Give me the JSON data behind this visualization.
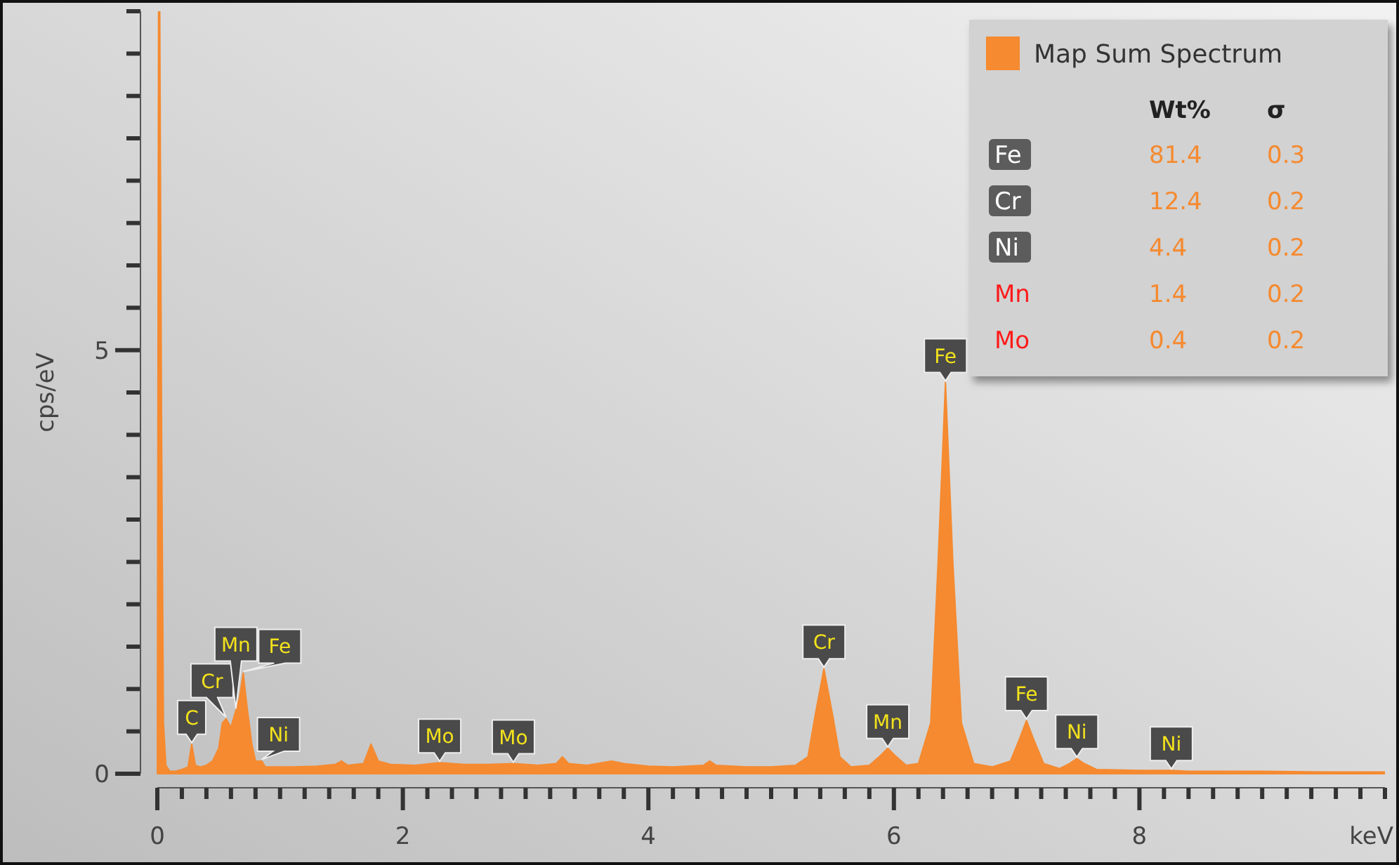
{
  "chart_data": [
    {
      "type": "area",
      "xlabel": "keV",
      "ylabel": "cps/eV",
      "legend": "top right",
      "xlim": [
        0,
        10
      ],
      "ylim": [
        0,
        9
      ],
      "xticks": [
        0,
        {
          "value": 0.2,
          "label": null
        },
        {
          "value": 0.4,
          "label": null
        },
        {
          "value": 0.6,
          "label": null
        },
        {
          "value": 0.8,
          "label": null
        },
        {
          "value": 1,
          "label": null
        },
        {
          "value": 1.2,
          "label": null
        },
        {
          "value": 1.4,
          "label": null
        },
        {
          "value": 1.6,
          "label": null
        },
        {
          "value": 1.8,
          "label": null
        },
        2,
        {
          "value": 2.2,
          "label": null
        },
        {
          "value": 2.4,
          "label": null
        },
        {
          "value": 2.6,
          "label": null
        },
        {
          "value": 2.8,
          "label": null
        },
        {
          "value": 3,
          "label": null
        },
        {
          "value": 3.2,
          "label": null
        },
        {
          "value": 3.4,
          "label": null
        },
        {
          "value": 3.6,
          "label": null
        },
        {
          "value": 3.8,
          "label": null
        },
        4,
        {
          "value": 4.2,
          "label": null
        },
        {
          "value": 4.4,
          "label": null
        },
        {
          "value": 4.6,
          "label": null
        },
        {
          "value": 4.8,
          "label": null
        },
        {
          "value": 5,
          "label": null
        },
        {
          "value": 5.2,
          "label": null
        },
        {
          "value": 5.4,
          "label": null
        },
        {
          "value": 5.6,
          "label": null
        },
        {
          "value": 5.8,
          "label": null
        },
        6,
        {
          "value": 6.2,
          "label": null
        },
        {
          "value": 6.4,
          "label": null
        },
        {
          "value": 6.6,
          "label": null
        },
        {
          "value": 6.8,
          "label": null
        },
        {
          "value": 7,
          "label": null
        },
        {
          "value": 7.2,
          "label": null
        },
        {
          "value": 7.4,
          "label": null
        },
        {
          "value": 7.6,
          "label": null
        },
        {
          "value": 7.8,
          "label": null
        },
        8,
        {
          "value": 8.2,
          "label": null
        },
        {
          "value": 8.4,
          "label": null
        },
        {
          "value": 8.6,
          "label": null
        },
        {
          "value": 8.8,
          "label": null
        },
        {
          "value": 9,
          "label": null
        },
        {
          "value": 9.2,
          "label": null
        },
        {
          "value": 9.4,
          "label": null
        },
        {
          "value": 9.6,
          "label": null
        },
        {
          "value": 9.8,
          "label": null
        },
        {
          "value": 10,
          "label": null
        }
      ],
      "yticks": [
        0,
        {
          "value": 0.5,
          "label": null
        },
        {
          "value": 1,
          "label": null
        },
        {
          "value": 1.5,
          "label": null
        },
        {
          "value": 2,
          "label": null
        },
        {
          "value": 2.5,
          "label": null
        },
        {
          "value": 3,
          "label": null
        },
        {
          "value": 3.5,
          "label": null
        },
        {
          "value": 4,
          "label": null
        },
        {
          "value": 4.5,
          "label": null
        },
        5,
        {
          "value": 5.5,
          "label": null
        },
        {
          "value": 6,
          "label": null
        },
        {
          "value": 6.5,
          "label": null
        },
        {
          "value": 7,
          "label": null
        },
        {
          "value": 7.5,
          "label": null
        },
        {
          "value": 8,
          "label": null
        },
        {
          "value": 8.5,
          "label": null
        },
        {
          "value": 9,
          "label": null
        }
      ],
      "x": [
        0,
        0.01,
        0.02,
        0.035,
        0.05,
        0.07,
        0.1,
        0.15,
        0.2,
        0.25,
        0.28,
        0.31,
        0.35,
        0.4,
        0.45,
        0.5,
        0.53,
        0.56,
        0.6,
        0.64,
        0.67,
        0.7,
        0.73,
        0.77,
        0.8,
        0.85,
        0.88,
        0.95,
        1.1,
        1.3,
        1.45,
        1.5,
        1.55,
        1.68,
        1.74,
        1.8,
        1.9,
        2.1,
        2.3,
        2.5,
        2.7,
        2.9,
        3.1,
        3.25,
        3.3,
        3.35,
        3.5,
        3.7,
        3.8,
        4.0,
        4.2,
        4.45,
        4.5,
        4.55,
        4.8,
        5.0,
        5.2,
        5.3,
        5.36,
        5.43,
        5.5,
        5.56,
        5.65,
        5.8,
        5.88,
        5.95,
        6.02,
        6.1,
        6.2,
        6.3,
        6.36,
        6.42,
        6.48,
        6.55,
        6.65,
        6.8,
        6.95,
        7.02,
        7.08,
        7.14,
        7.22,
        7.35,
        7.43,
        7.49,
        7.55,
        7.65,
        8.0,
        8.26,
        8.4,
        9.0,
        9.5,
        10
      ],
      "series": [
        {
          "name": "Map Sum Spectrum",
          "color": "#f58a30",
          "values": [
            0,
            9,
            9,
            4,
            0.6,
            0.1,
            0.03,
            0.03,
            0.05,
            0.08,
            0.35,
            0.1,
            0.08,
            0.1,
            0.15,
            0.3,
            0.6,
            0.65,
            0.55,
            0.75,
            0.9,
            1.19,
            0.8,
            0.35,
            0.15,
            0.15,
            0.08,
            0.08,
            0.08,
            0.09,
            0.11,
            0.15,
            0.1,
            0.12,
            0.35,
            0.15,
            0.11,
            0.1,
            0.13,
            0.11,
            0.11,
            0.12,
            0.1,
            0.12,
            0.2,
            0.12,
            0.1,
            0.15,
            0.12,
            0.09,
            0.08,
            0.1,
            0.15,
            0.1,
            0.08,
            0.08,
            0.1,
            0.2,
            0.7,
            1.24,
            0.7,
            0.2,
            0.08,
            0.1,
            0.2,
            0.3,
            0.2,
            0.1,
            0.12,
            0.6,
            2.5,
            4.62,
            2.5,
            0.6,
            0.12,
            0.08,
            0.15,
            0.4,
            0.63,
            0.4,
            0.12,
            0.06,
            0.12,
            0.18,
            0.12,
            0.05,
            0.04,
            0.04,
            0.03,
            0.03,
            0.02,
            0.02
          ]
        }
      ],
      "annotations": [
        {
          "text": "C",
          "x": 0.28,
          "y": 0.35
        },
        {
          "text": "Cr",
          "x": 0.56,
          "y": 0.65
        },
        {
          "text": "Mn",
          "x": 0.64,
          "y": 0.75
        },
        {
          "text": "Fe",
          "x": 0.7,
          "y": 1.19
        },
        {
          "text": "Ni",
          "x": 0.85,
          "y": 0.15
        },
        {
          "text": "Mo",
          "x": 2.3,
          "y": 0.13
        },
        {
          "text": "Mo",
          "x": 2.9,
          "y": 0.12
        },
        {
          "text": "Cr",
          "x": 5.43,
          "y": 1.24
        },
        {
          "text": "Mn",
          "x": 5.95,
          "y": 0.3
        },
        {
          "text": "Fe",
          "x": 6.42,
          "y": 4.62
        },
        {
          "text": "Fe",
          "x": 7.08,
          "y": 0.63
        },
        {
          "text": "Ni",
          "x": 7.49,
          "y": 0.18
        },
        {
          "text": "Ni",
          "x": 8.26,
          "y": 0.04
        }
      ]
    },
    {
      "type": "other",
      "data_labels": true,
      "categories": [
        "Fe",
        "Cr",
        "Ni",
        "Mn",
        "Mo"
      ],
      "colors": [
        "#ffffff",
        "#ffffff",
        "#ffffff",
        "#ff1a1a",
        "#ff1a1a"
      ],
      "series": [
        {
          "name": "Wt%",
          "values": [
            81.4,
            12.4,
            4.4,
            1.4,
            0.4
          ]
        },
        {
          "name": "σ",
          "values": [
            0.3,
            0.2,
            0.2,
            0.2,
            0.2
          ]
        }
      ]
    }
  ]
}
